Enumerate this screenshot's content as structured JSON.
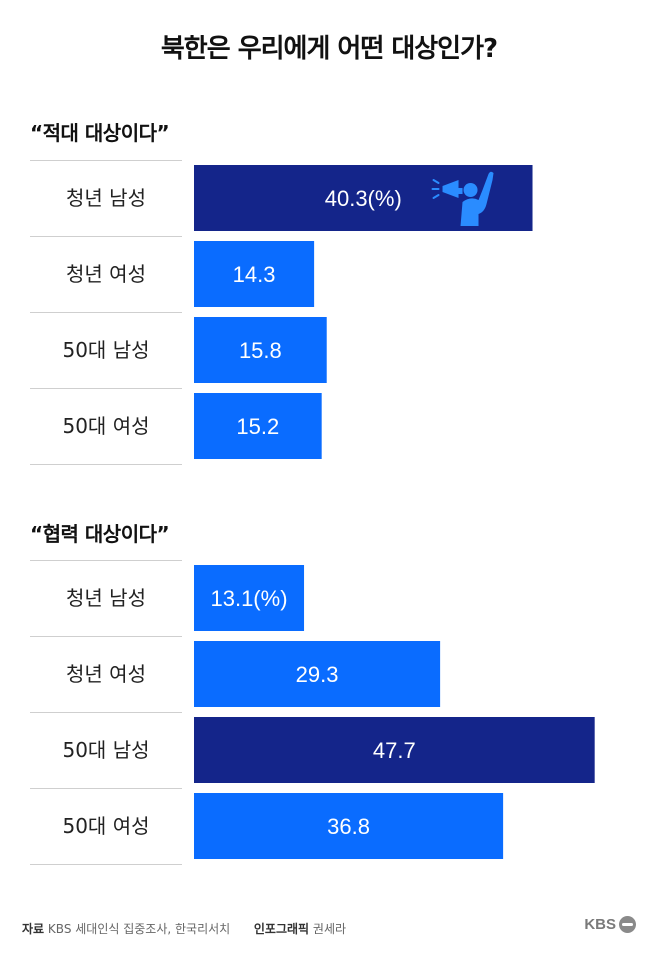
{
  "title": "북한은 우리에게 어떤 대상인가?",
  "chart_data": [
    {
      "type": "bar",
      "orientation": "horizontal",
      "title": "“적대 대상이다”",
      "categories": [
        "청년 남성",
        "청년 여성",
        "50대 남성",
        "50대 여성"
      ],
      "values": [
        40.3,
        14.3,
        15.8,
        15.2
      ],
      "value_labels": [
        "40.3(%)",
        "14.3",
        "15.8",
        "15.2"
      ],
      "highlight_index": 0,
      "unit": "%",
      "xlim": [
        0,
        50
      ],
      "grid": false,
      "legend": "none",
      "icon": "protester-megaphone-icon"
    },
    {
      "type": "bar",
      "orientation": "horizontal",
      "title": "“협력 대상이다”",
      "categories": [
        "청년 남성",
        "청년 여성",
        "50대 남성",
        "50대 여성"
      ],
      "values": [
        13.1,
        29.3,
        47.7,
        36.8
      ],
      "value_labels": [
        "13.1(%)",
        "29.3",
        "47.7",
        "36.8"
      ],
      "highlight_index": 2,
      "unit": "%",
      "xlim": [
        0,
        50
      ],
      "grid": false,
      "legend": "none"
    }
  ],
  "colors": {
    "bar": "#0a6cff",
    "highlight": "#14258a",
    "separator": "#cfcfcf",
    "value_text": "#ffffff"
  },
  "footer": {
    "source_label": "자료",
    "source_text": "KBS 세대인식 집중조사, 한국리서치",
    "credit_label": "인포그래픽",
    "credit_text": "권세라",
    "logo_text": "KBS"
  }
}
